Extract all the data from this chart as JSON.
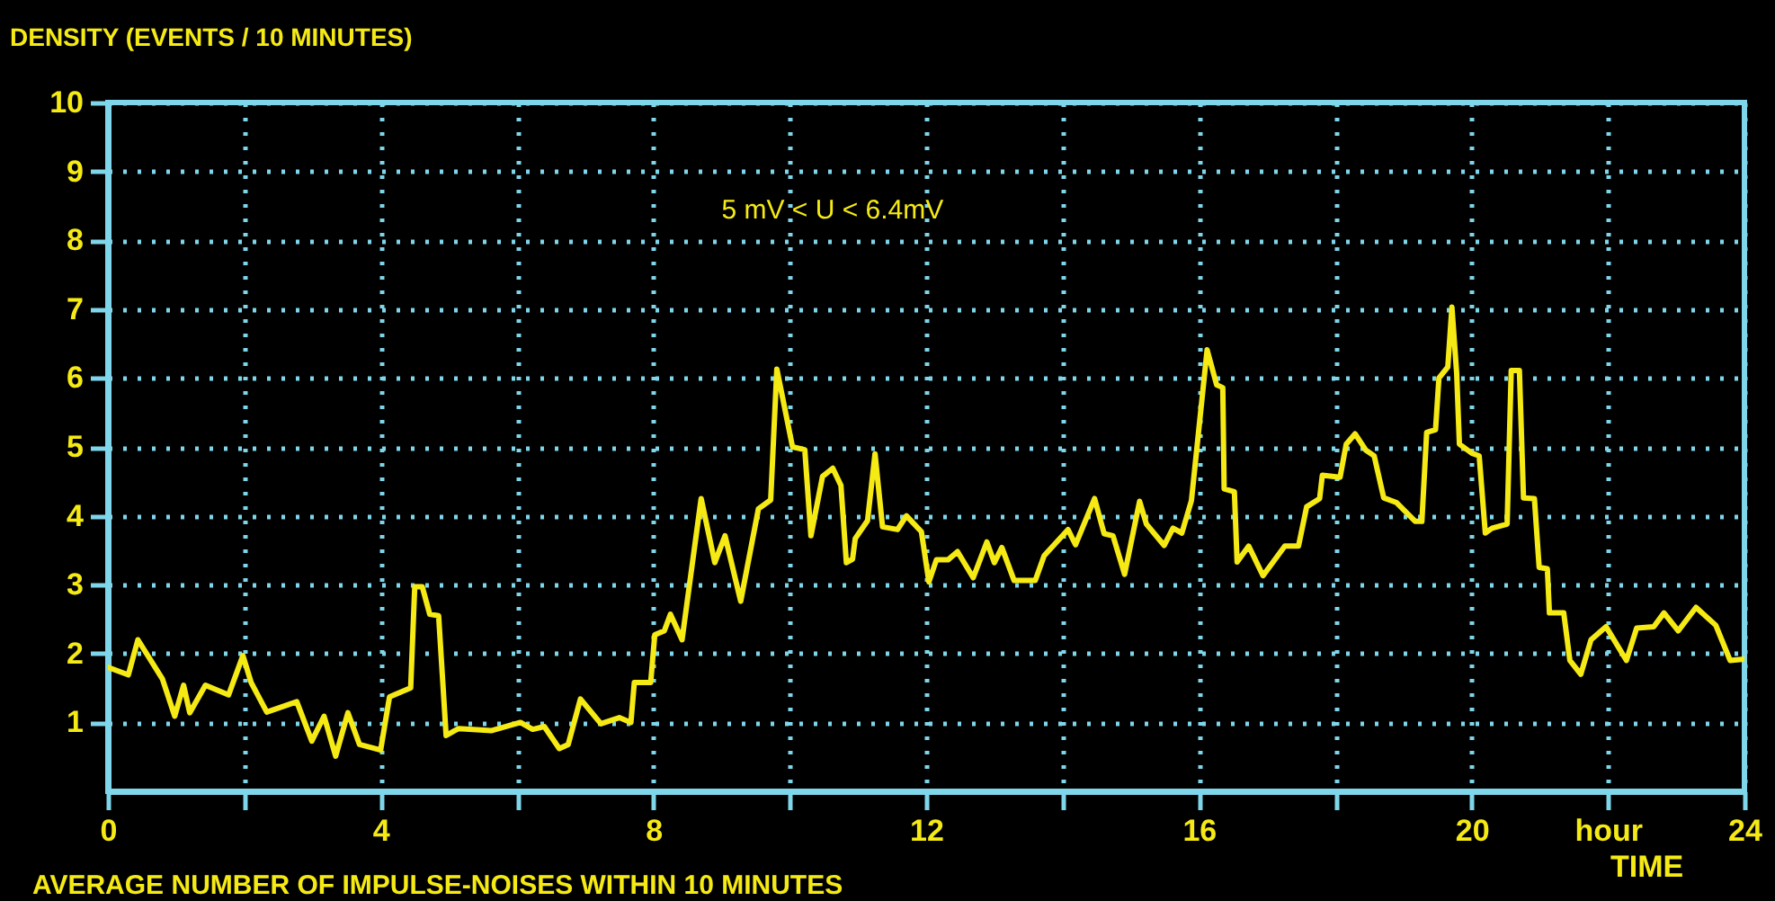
{
  "chart_data": {
    "type": "line",
    "title": "AVERAGE NUMBER OF IMPULSE-NOISES WITHIN 10 MINUTES",
    "xlabel": "TIME",
    "ylabel": "DENSITY (EVENTS / 10 MINUTES)",
    "annotations": [
      "5 mV < U < 6.4mV"
    ],
    "xlim": [
      0,
      24
    ],
    "ylim": [
      0,
      10
    ],
    "xticks": [
      0,
      {
        "value": 2,
        "label": null
      },
      4,
      {
        "value": 6,
        "label": null
      },
      8,
      {
        "value": 10,
        "label": null
      },
      12,
      {
        "value": 14,
        "label": null
      },
      16,
      {
        "value": 18,
        "label": null
      },
      20,
      {
        "value": 22,
        "label": "hour"
      },
      24
    ],
    "yticks": [
      1,
      2,
      3,
      4,
      5,
      6,
      7,
      8,
      9,
      10
    ],
    "grid": true,
    "series": [
      {
        "color": "#f5ea14",
        "x": [
          0,
          0.3,
          0.44,
          0.8,
          0.98,
          1.11,
          1.2,
          1.43,
          1.77,
          1.98,
          2.1,
          2.33,
          2.77,
          2.99,
          3.17,
          3.34,
          3.52,
          3.69,
          4.0,
          4.13,
          4.44,
          4.5,
          4.61,
          4.72,
          4.85,
          4.96,
          5.14,
          5.62,
          6.05,
          6.23,
          6.4,
          6.62,
          6.75,
          6.93,
          7.23,
          7.5,
          7.67,
          7.72,
          7.96,
          8.02,
          8.16,
          8.25,
          8.42,
          8.7,
          8.9,
          9.05,
          9.28,
          9.54,
          9.72,
          9.81,
          10.04,
          10.22,
          10.31,
          10.48,
          10.63,
          10.75,
          10.83,
          10.92,
          10.96,
          11.14,
          11.25,
          11.36,
          11.58,
          11.71,
          11.93,
          12.04,
          12.15,
          12.32,
          12.46,
          12.69,
          12.89,
          13.0,
          13.11,
          13.29,
          13.6,
          13.73,
          14.08,
          14.19,
          14.47,
          14.61,
          14.74,
          14.91,
          15.13,
          15.23,
          15.49,
          15.62,
          15.75,
          15.89,
          16.12,
          16.26,
          16.35,
          16.37,
          16.52,
          16.56,
          16.73,
          16.94,
          17.26,
          17.46,
          17.58,
          17.77,
          17.81,
          18.07,
          18.16,
          18.29,
          18.45,
          18.57,
          18.71,
          18.9,
          19.17,
          19.27,
          19.34,
          19.47,
          19.52,
          19.65,
          19.71,
          19.78,
          19.82,
          20.0,
          20.11,
          20.2,
          20.3,
          20.52,
          20.58,
          20.7,
          20.76,
          20.92,
          20.99,
          21.11,
          21.14,
          21.35,
          21.44,
          21.6,
          21.75,
          21.97,
          22.27,
          22.42,
          22.67,
          22.82,
          23.03,
          23.29,
          23.58,
          23.79,
          24.0
        ],
        "values": [
          1.8,
          1.69,
          2.2,
          1.63,
          1.09,
          1.54,
          1.14,
          1.54,
          1.4,
          1.97,
          1.58,
          1.15,
          1.3,
          0.73,
          1.09,
          0.51,
          1.14,
          0.68,
          0.6,
          1.37,
          1.5,
          2.97,
          2.97,
          2.57,
          2.55,
          0.81,
          0.91,
          0.88,
          1.0,
          0.9,
          0.94,
          0.62,
          0.68,
          1.34,
          0.98,
          1.07,
          1.0,
          1.58,
          1.58,
          2.27,
          2.33,
          2.57,
          2.2,
          4.25,
          3.32,
          3.71,
          2.76,
          4.1,
          4.23,
          6.13,
          5.0,
          4.96,
          3.71,
          4.57,
          4.69,
          4.44,
          3.32,
          3.37,
          3.67,
          3.93,
          4.9,
          3.84,
          3.8,
          4.0,
          3.77,
          3.04,
          3.36,
          3.36,
          3.48,
          3.1,
          3.62,
          3.32,
          3.54,
          3.06,
          3.06,
          3.42,
          3.8,
          3.58,
          4.25,
          3.74,
          3.71,
          3.15,
          4.21,
          3.88,
          3.57,
          3.82,
          3.75,
          4.22,
          6.41,
          5.9,
          5.86,
          4.39,
          4.35,
          3.33,
          3.56,
          3.13,
          3.56,
          3.56,
          4.13,
          4.25,
          4.59,
          4.56,
          5.04,
          5.19,
          4.95,
          4.87,
          4.26,
          4.19,
          3.92,
          3.92,
          5.21,
          5.25,
          6.0,
          6.16,
          7.03,
          6.07,
          5.04,
          4.91,
          4.87,
          3.75,
          3.82,
          3.88,
          6.11,
          6.11,
          4.26,
          4.25,
          3.25,
          3.23,
          2.59,
          2.59,
          1.9,
          1.7,
          2.2,
          2.39,
          1.9,
          2.37,
          2.39,
          2.59,
          2.33,
          2.67,
          2.41,
          1.9,
          1.92
        ]
      }
    ]
  }
}
